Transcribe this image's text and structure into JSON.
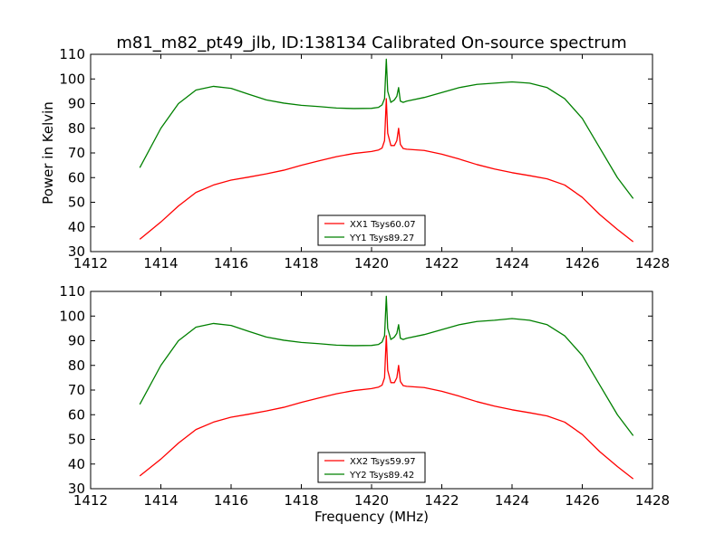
{
  "figure": {
    "title": "m81_m82_pt49_jlb, ID:138134 Calibrated On-source spectrum",
    "background": "#ffffff"
  },
  "chart_data": [
    {
      "type": "line",
      "title": "m81_m82_pt49_jlb, ID:138134 Calibrated On-source spectrum",
      "xlabel": "",
      "ylabel": "Power in Kelvin",
      "xlim": [
        1412,
        1428
      ],
      "ylim": [
        30,
        110
      ],
      "xticks": [
        1412,
        1414,
        1416,
        1418,
        1420,
        1422,
        1424,
        1426,
        1428
      ],
      "yticks": [
        30,
        40,
        50,
        60,
        70,
        80,
        90,
        100,
        110
      ],
      "grid": false,
      "legend_position": "lower-center",
      "series": [
        {
          "name": "XX1 Tsys60.07",
          "color": "#ff0000",
          "x": [
            1413.4,
            1414.0,
            1414.5,
            1415.0,
            1415.5,
            1416.0,
            1416.5,
            1417.0,
            1417.5,
            1418.0,
            1418.5,
            1419.0,
            1419.5,
            1420.0,
            1420.2,
            1420.3,
            1420.37,
            1420.42,
            1420.46,
            1420.55,
            1420.65,
            1420.72,
            1420.77,
            1420.82,
            1420.9,
            1421.0,
            1421.5,
            1422.0,
            1422.5,
            1423.0,
            1423.5,
            1424.0,
            1424.5,
            1425.0,
            1425.5,
            1426.0,
            1426.5,
            1427.0,
            1427.45
          ],
          "y": [
            35.0,
            42.0,
            48.5,
            54.0,
            57.0,
            59.0,
            60.2,
            61.5,
            63.0,
            65.0,
            66.8,
            68.5,
            69.8,
            70.6,
            71.2,
            72.0,
            75.0,
            92.0,
            78.0,
            73.0,
            73.0,
            75.0,
            80.0,
            73.5,
            71.8,
            71.5,
            71.0,
            69.5,
            67.5,
            65.3,
            63.5,
            62.0,
            60.8,
            59.5,
            57.0,
            52.0,
            45.0,
            39.0,
            34.0
          ]
        },
        {
          "name": "YY1 Tsys89.27",
          "color": "#008000",
          "x": [
            1413.4,
            1414.0,
            1414.5,
            1415.0,
            1415.5,
            1416.0,
            1416.5,
            1417.0,
            1417.5,
            1418.0,
            1418.5,
            1419.0,
            1419.5,
            1420.0,
            1420.2,
            1420.3,
            1420.37,
            1420.42,
            1420.46,
            1420.55,
            1420.65,
            1420.72,
            1420.77,
            1420.82,
            1420.9,
            1421.0,
            1421.5,
            1422.0,
            1422.5,
            1423.0,
            1423.5,
            1424.0,
            1424.5,
            1425.0,
            1425.5,
            1426.0,
            1426.5,
            1427.0,
            1427.45
          ],
          "y": [
            64.0,
            80.0,
            90.0,
            95.5,
            97.0,
            96.2,
            93.8,
            91.5,
            90.2,
            89.3,
            88.8,
            88.2,
            88.0,
            88.1,
            88.5,
            89.5,
            92.0,
            108.0,
            95.0,
            90.5,
            91.5,
            93.0,
            96.5,
            91.0,
            90.5,
            91.0,
            92.5,
            94.5,
            96.5,
            97.8,
            98.3,
            98.8,
            98.3,
            96.5,
            92.0,
            84.0,
            72.0,
            60.0,
            51.5
          ]
        }
      ]
    },
    {
      "type": "line",
      "title": "",
      "xlabel": "Frequency (MHz)",
      "ylabel": "",
      "xlim": [
        1412,
        1428
      ],
      "ylim": [
        30,
        110
      ],
      "xticks": [
        1412,
        1414,
        1416,
        1418,
        1420,
        1422,
        1424,
        1426,
        1428
      ],
      "yticks": [
        30,
        40,
        50,
        60,
        70,
        80,
        90,
        100,
        110
      ],
      "grid": false,
      "legend_position": "lower-center",
      "series": [
        {
          "name": "XX2 Tsys59.97",
          "color": "#ff0000",
          "x": [
            1413.4,
            1414.0,
            1414.5,
            1415.0,
            1415.5,
            1416.0,
            1416.5,
            1417.0,
            1417.5,
            1418.0,
            1418.5,
            1419.0,
            1419.5,
            1420.0,
            1420.2,
            1420.3,
            1420.37,
            1420.42,
            1420.46,
            1420.55,
            1420.65,
            1420.72,
            1420.77,
            1420.82,
            1420.9,
            1421.0,
            1421.5,
            1422.0,
            1422.5,
            1423.0,
            1423.5,
            1424.0,
            1424.5,
            1425.0,
            1425.5,
            1426.0,
            1426.5,
            1427.0,
            1427.45
          ],
          "y": [
            35.2,
            42.0,
            48.5,
            54.0,
            57.0,
            59.0,
            60.2,
            61.5,
            63.0,
            65.0,
            66.8,
            68.5,
            69.8,
            70.6,
            71.2,
            72.0,
            75.0,
            92.0,
            78.0,
            73.0,
            73.0,
            75.0,
            80.0,
            73.5,
            71.8,
            71.5,
            71.0,
            69.5,
            67.5,
            65.3,
            63.5,
            62.0,
            60.8,
            59.5,
            57.0,
            52.0,
            45.0,
            39.0,
            34.0
          ]
        },
        {
          "name": "YY2 Tsys89.42",
          "color": "#008000",
          "x": [
            1413.4,
            1414.0,
            1414.5,
            1415.0,
            1415.5,
            1416.0,
            1416.5,
            1417.0,
            1417.5,
            1418.0,
            1418.5,
            1419.0,
            1419.5,
            1420.0,
            1420.2,
            1420.3,
            1420.37,
            1420.42,
            1420.46,
            1420.55,
            1420.65,
            1420.72,
            1420.77,
            1420.82,
            1420.9,
            1421.0,
            1421.5,
            1422.0,
            1422.5,
            1423.0,
            1423.5,
            1424.0,
            1424.5,
            1425.0,
            1425.5,
            1426.0,
            1426.5,
            1427.0,
            1427.45
          ],
          "y": [
            64.2,
            80.0,
            90.0,
            95.5,
            97.0,
            96.2,
            93.8,
            91.5,
            90.2,
            89.3,
            88.8,
            88.2,
            88.0,
            88.1,
            88.5,
            89.5,
            92.0,
            108.0,
            95.0,
            90.5,
            91.5,
            93.0,
            96.5,
            91.0,
            90.5,
            91.0,
            92.5,
            94.5,
            96.5,
            97.8,
            98.3,
            99.0,
            98.3,
            96.5,
            92.0,
            84.0,
            72.0,
            60.0,
            51.5
          ]
        }
      ]
    }
  ]
}
